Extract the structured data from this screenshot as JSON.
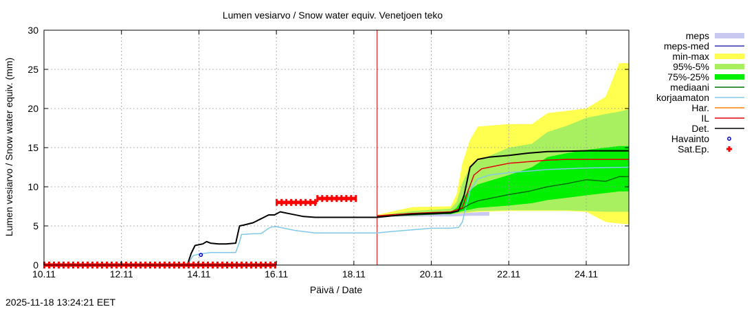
{
  "chart_data": {
    "type": "line",
    "title": "Lumen vesiarvo / Snow water equiv.  Venetjoen teko",
    "xlabel": "Päivä / Date",
    "ylabel": "Lumen vesiarvo / Snow water equiv. (mm)",
    "timestamp": "2025-11-18 13:24:21 EET",
    "xlim": [
      0,
      15.1
    ],
    "ylim": [
      0,
      30
    ],
    "x_unit": "days since 10.11",
    "x_ticks": [
      {
        "x": 0,
        "label": "10.11"
      },
      {
        "x": 2,
        "label": "12.11"
      },
      {
        "x": 4,
        "label": "14.11"
      },
      {
        "x": 6,
        "label": "16.11"
      },
      {
        "x": 8,
        "label": "18.11"
      },
      {
        "x": 10,
        "label": "20.11"
      },
      {
        "x": 12,
        "label": "22.11"
      },
      {
        "x": 14,
        "label": "24.11"
      }
    ],
    "y_ticks": [
      0,
      5,
      10,
      15,
      20,
      25,
      30
    ],
    "grid": true,
    "forecast_start_x": 8.6,
    "legend": [
      {
        "label": "meps",
        "kind": "box",
        "color": "#c8c8f0"
      },
      {
        "label": "meps-med",
        "kind": "line",
        "color": "#3030b0"
      },
      {
        "label": "min-max",
        "kind": "box",
        "color": "#ffff50"
      },
      {
        "label": "95%-5%",
        "kind": "box",
        "color": "#a8f060"
      },
      {
        "label": "75%-25%",
        "kind": "box",
        "color": "#00f000"
      },
      {
        "label": "mediaani",
        "kind": "line",
        "color": "#007000"
      },
      {
        "label": "korjaamaton",
        "kind": "line",
        "color": "#80c8e8"
      },
      {
        "label": "Har.",
        "kind": "line",
        "color": "#ff8000"
      },
      {
        "label": "IL",
        "kind": "line",
        "color": "#e00000"
      },
      {
        "label": "Det.",
        "kind": "line",
        "color": "#000000"
      },
      {
        "label": "Havainto",
        "kind": "circle",
        "color": "#0000cc"
      },
      {
        "label": "Sat.Ep.",
        "kind": "plus",
        "color": "#ff0000"
      }
    ],
    "bands": {
      "min_max": {
        "x": [
          8.6,
          9.5,
          10.5,
          10.65,
          10.8,
          11.0,
          11.2,
          12.0,
          12.6,
          13.0,
          13.5,
          14.0,
          14.5,
          14.85,
          15.1
        ],
        "low": [
          6.2,
          6.2,
          6.3,
          6.5,
          6.6,
          6.7,
          6.8,
          6.9,
          6.9,
          6.9,
          6.9,
          6.8,
          5.5,
          5.3,
          5.2
        ],
        "high": [
          6.4,
          7.4,
          7.5,
          9.0,
          13.0,
          16.0,
          17.7,
          18.0,
          18.0,
          19.4,
          19.7,
          20.0,
          21.5,
          25.8,
          25.8
        ]
      },
      "p95_5": {
        "x": [
          8.6,
          9.5,
          10.5,
          10.65,
          10.8,
          11.0,
          11.2,
          12.0,
          12.6,
          13.0,
          13.5,
          14.0,
          14.5,
          14.85,
          15.1
        ],
        "low": [
          6.2,
          6.2,
          6.3,
          6.6,
          6.7,
          6.8,
          6.9,
          7.0,
          7.0,
          7.0,
          7.0,
          6.9,
          6.8,
          6.8,
          6.8
        ],
        "high": [
          6.3,
          6.9,
          7.2,
          8.0,
          10.5,
          12.5,
          13.3,
          15.0,
          15.5,
          17.0,
          17.8,
          18.8,
          19.3,
          19.6,
          19.9
        ]
      },
      "p75_25": {
        "x": [
          8.6,
          9.5,
          10.5,
          10.65,
          10.8,
          11.0,
          11.2,
          12.0,
          12.6,
          13.0,
          13.5,
          14.0,
          14.5,
          14.85,
          15.1
        ],
        "low": [
          6.2,
          6.3,
          6.5,
          6.7,
          6.9,
          7.1,
          7.3,
          7.6,
          7.9,
          8.3,
          8.6,
          8.9,
          9.2,
          9.4,
          9.4
        ],
        "high": [
          6.3,
          6.6,
          6.8,
          7.3,
          8.5,
          9.6,
          10.3,
          11.5,
          12.5,
          13.8,
          14.3,
          14.7,
          15.0,
          15.2,
          15.2
        ]
      },
      "meps": {
        "x": [
          8.6,
          9.5,
          10.5,
          11.0,
          11.5
        ],
        "low": [
          6.2,
          6.2,
          6.2,
          6.3,
          6.3
        ],
        "high": [
          6.3,
          6.5,
          6.5,
          6.7,
          6.8
        ]
      }
    },
    "series": [
      {
        "name": "korjaamaton",
        "color": "#80c8e8",
        "width": 1.5,
        "x": [
          3.7,
          3.85,
          4.0,
          4.3,
          4.7,
          4.95,
          5.05,
          5.1,
          5.4,
          5.6,
          5.8,
          5.9,
          6.0,
          6.5,
          7.0,
          8.6,
          9.0,
          9.5,
          10.0,
          10.5,
          10.7,
          10.8,
          10.9,
          11.0,
          11.2,
          11.5,
          12.0,
          12.5,
          13.0,
          14.0,
          15.1
        ],
        "y": [
          0,
          1.2,
          1.4,
          1.6,
          1.6,
          1.6,
          3.0,
          3.9,
          4.0,
          4.0,
          4.7,
          4.9,
          4.9,
          4.4,
          4.1,
          4.1,
          4.3,
          4.5,
          4.7,
          4.7,
          4.8,
          5.5,
          7.5,
          9.5,
          11.0,
          11.5,
          11.8,
          12.0,
          12.2,
          12.4,
          12.5
        ]
      },
      {
        "name": "mediaani",
        "color": "#007000",
        "width": 1.5,
        "x": [
          8.6,
          9.5,
          10.5,
          10.8,
          11.0,
          11.2,
          11.5,
          12.0,
          12.5,
          13.0,
          13.5,
          14.0,
          14.5,
          14.85,
          15.1
        ],
        "y": [
          6.2,
          6.4,
          6.6,
          7.2,
          7.8,
          8.2,
          8.5,
          9.0,
          9.4,
          10.0,
          10.4,
          10.9,
          10.7,
          11.3,
          11.3
        ]
      },
      {
        "name": "IL",
        "color": "#e00000",
        "width": 1.5,
        "x": [
          8.6,
          9.5,
          10.5,
          10.8,
          10.95,
          11.1,
          11.3,
          11.6,
          12.0,
          12.5,
          13.0,
          13.5,
          14.0,
          15.1
        ],
        "y": [
          6.3,
          6.6,
          6.8,
          7.3,
          9.5,
          11.5,
          12.3,
          12.6,
          13.0,
          13.2,
          13.4,
          13.5,
          13.5,
          13.5
        ]
      },
      {
        "name": "Det.",
        "color": "#000000",
        "width": 2,
        "x": [
          3.7,
          3.8,
          3.9,
          4.1,
          4.2,
          4.3,
          4.5,
          4.7,
          4.95,
          5.05,
          5.15,
          5.4,
          5.6,
          5.8,
          5.95,
          6.1,
          6.3,
          6.7,
          7.0,
          8.6,
          9.0,
          9.5,
          10.0,
          10.5,
          10.7,
          10.85,
          11.0,
          11.2,
          11.5,
          12.0,
          12.5,
          13.0,
          14.0,
          15.1
        ],
        "y": [
          0,
          1.5,
          2.5,
          2.7,
          3.0,
          2.8,
          2.7,
          2.7,
          2.8,
          5.0,
          5.1,
          5.4,
          5.9,
          6.4,
          6.4,
          6.8,
          6.6,
          6.2,
          6.1,
          6.1,
          6.3,
          6.5,
          6.6,
          6.7,
          6.9,
          9.0,
          12.5,
          13.5,
          13.8,
          14.0,
          14.3,
          14.5,
          14.6,
          14.6
        ]
      }
    ],
    "havainto": [
      {
        "x": 4.05,
        "y": 1.3
      }
    ],
    "sat_ep": [
      {
        "x_start": 0.0,
        "x_end": 6.0,
        "y": 0.0
      },
      {
        "x_start": 6.0,
        "x_end": 7.05,
        "y": 8.0
      },
      {
        "x_start": 7.05,
        "x_end": 8.05,
        "y": 8.5
      }
    ]
  }
}
